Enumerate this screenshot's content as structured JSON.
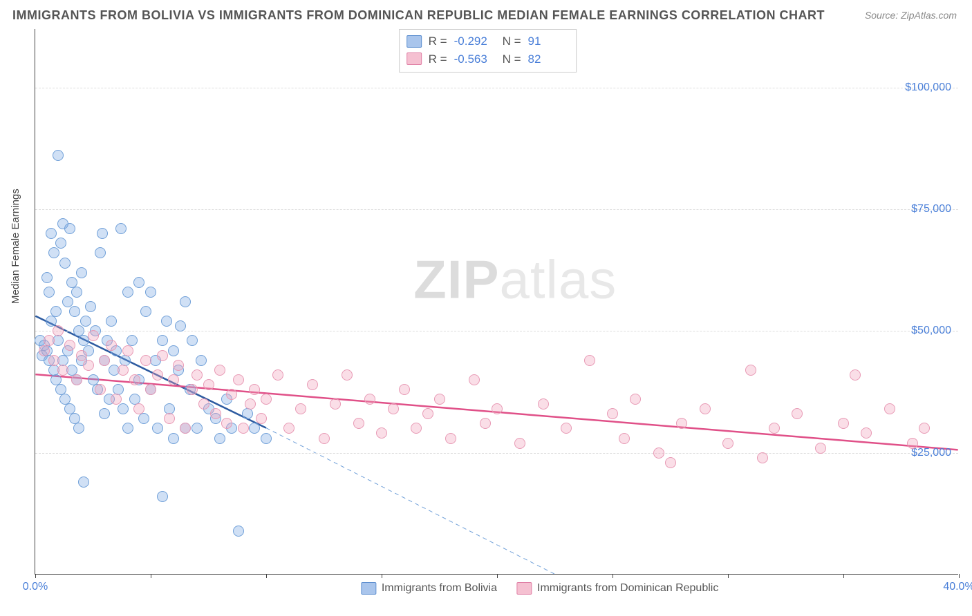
{
  "title": "IMMIGRANTS FROM BOLIVIA VS IMMIGRANTS FROM DOMINICAN REPUBLIC MEDIAN FEMALE EARNINGS CORRELATION CHART",
  "source": "Source: ZipAtlas.com",
  "ylabel": "Median Female Earnings",
  "watermark_a": "ZIP",
  "watermark_b": "atlas",
  "chart": {
    "type": "scatter",
    "xlim": [
      0,
      40
    ],
    "ylim": [
      0,
      112000
    ],
    "x_ticks": [
      0,
      5,
      10,
      15,
      20,
      25,
      30,
      35,
      40
    ],
    "x_tick_labels": {
      "0": "0.0%",
      "40": "40.0%"
    },
    "y_grid": [
      25000,
      50000,
      75000,
      100000
    ],
    "y_tick_labels": {
      "25000": "$25,000",
      "50000": "$50,000",
      "75000": "$75,000",
      "100000": "$100,000"
    },
    "background_color": "#ffffff",
    "grid_color": "#dddddd",
    "axis_color": "#444444",
    "label_color": "#4a7fd8",
    "marker_radius": 8,
    "series": [
      {
        "name": "Immigrants from Bolivia",
        "color_fill": "rgba(120,165,225,0.35)",
        "color_stroke": "#6f9fd8",
        "swatch_fill": "#a9c5ec",
        "swatch_stroke": "#5e8fd0",
        "R": "-0.292",
        "N": "91",
        "trend": {
          "x1": 0,
          "y1": 53000,
          "x2": 10,
          "y2": 30000,
          "color": "#2c5aa0",
          "width": 2.5,
          "dash": "none"
        },
        "trend_ext": {
          "x1": 10,
          "y1": 30000,
          "x2": 22.5,
          "y2": 0,
          "color": "#6f9fd8",
          "width": 1,
          "dash": "6,5"
        },
        "points": [
          [
            0.2,
            48000
          ],
          [
            0.3,
            45000
          ],
          [
            0.4,
            47000
          ],
          [
            0.5,
            61000
          ],
          [
            0.5,
            46000
          ],
          [
            0.6,
            58000
          ],
          [
            0.6,
            44000
          ],
          [
            0.7,
            70000
          ],
          [
            0.7,
            52000
          ],
          [
            0.8,
            66000
          ],
          [
            0.8,
            42000
          ],
          [
            0.9,
            54000
          ],
          [
            0.9,
            40000
          ],
          [
            1.0,
            86000
          ],
          [
            1.0,
            48000
          ],
          [
            1.1,
            68000
          ],
          [
            1.1,
            38000
          ],
          [
            1.2,
            72000
          ],
          [
            1.2,
            44000
          ],
          [
            1.3,
            64000
          ],
          [
            1.3,
            36000
          ],
          [
            1.4,
            56000
          ],
          [
            1.4,
            46000
          ],
          [
            1.5,
            71000
          ],
          [
            1.5,
            34000
          ],
          [
            1.6,
            60000
          ],
          [
            1.6,
            42000
          ],
          [
            1.7,
            54000
          ],
          [
            1.7,
            32000
          ],
          [
            1.8,
            58000
          ],
          [
            1.8,
            40000
          ],
          [
            1.9,
            50000
          ],
          [
            1.9,
            30000
          ],
          [
            2.0,
            62000
          ],
          [
            2.0,
            44000
          ],
          [
            2.1,
            48000
          ],
          [
            2.1,
            19000
          ],
          [
            2.2,
            52000
          ],
          [
            2.3,
            46000
          ],
          [
            2.4,
            55000
          ],
          [
            2.5,
            40000
          ],
          [
            2.6,
            50000
          ],
          [
            2.7,
            38000
          ],
          [
            2.8,
            66000
          ],
          [
            2.9,
            70000
          ],
          [
            3.0,
            44000
          ],
          [
            3.0,
            33000
          ],
          [
            3.1,
            48000
          ],
          [
            3.2,
            36000
          ],
          [
            3.3,
            52000
          ],
          [
            3.4,
            42000
          ],
          [
            3.5,
            46000
          ],
          [
            3.6,
            38000
          ],
          [
            3.7,
            71000
          ],
          [
            3.8,
            34000
          ],
          [
            3.9,
            44000
          ],
          [
            4.0,
            58000
          ],
          [
            4.0,
            30000
          ],
          [
            4.2,
            48000
          ],
          [
            4.3,
            36000
          ],
          [
            4.5,
            60000
          ],
          [
            4.5,
            40000
          ],
          [
            4.7,
            32000
          ],
          [
            4.8,
            54000
          ],
          [
            5.0,
            58000
          ],
          [
            5.0,
            38000
          ],
          [
            5.2,
            44000
          ],
          [
            5.3,
            30000
          ],
          [
            5.5,
            48000
          ],
          [
            5.5,
            16000
          ],
          [
            5.7,
            52000
          ],
          [
            5.8,
            34000
          ],
          [
            6.0,
            46000
          ],
          [
            6.0,
            28000
          ],
          [
            6.2,
            42000
          ],
          [
            6.3,
            51000
          ],
          [
            6.5,
            56000
          ],
          [
            6.5,
            30000
          ],
          [
            6.7,
            38000
          ],
          [
            6.8,
            48000
          ],
          [
            7.0,
            30000
          ],
          [
            7.2,
            44000
          ],
          [
            7.5,
            34000
          ],
          [
            7.8,
            32000
          ],
          [
            8.0,
            28000
          ],
          [
            8.3,
            36000
          ],
          [
            8.5,
            30000
          ],
          [
            8.8,
            9000
          ],
          [
            9.2,
            33000
          ],
          [
            9.5,
            30000
          ],
          [
            10.0,
            28000
          ]
        ]
      },
      {
        "name": "Immigrants from Dominican Republic",
        "color_fill": "rgba(240,160,185,0.35)",
        "color_stroke": "#e89ab5",
        "swatch_fill": "#f5c0d1",
        "swatch_stroke": "#e07fa5",
        "R": "-0.563",
        "N": "82",
        "trend": {
          "x1": 0,
          "y1": 41000,
          "x2": 40,
          "y2": 25500,
          "color": "#e05088",
          "width": 2.5,
          "dash": "none"
        },
        "points": [
          [
            0.4,
            46000
          ],
          [
            0.6,
            48000
          ],
          [
            0.8,
            44000
          ],
          [
            1.0,
            50000
          ],
          [
            1.2,
            42000
          ],
          [
            1.5,
            47000
          ],
          [
            1.8,
            40000
          ],
          [
            2.0,
            45000
          ],
          [
            2.3,
            43000
          ],
          [
            2.5,
            49000
          ],
          [
            2.8,
            38000
          ],
          [
            3.0,
            44000
          ],
          [
            3.3,
            47000
          ],
          [
            3.5,
            36000
          ],
          [
            3.8,
            42000
          ],
          [
            4.0,
            46000
          ],
          [
            4.3,
            40000
          ],
          [
            4.5,
            34000
          ],
          [
            4.8,
            44000
          ],
          [
            5.0,
            38000
          ],
          [
            5.3,
            41000
          ],
          [
            5.5,
            45000
          ],
          [
            5.8,
            32000
          ],
          [
            6.0,
            40000
          ],
          [
            6.2,
            43000
          ],
          [
            6.5,
            30000
          ],
          [
            6.8,
            38000
          ],
          [
            7.0,
            41000
          ],
          [
            7.3,
            35000
          ],
          [
            7.5,
            39000
          ],
          [
            7.8,
            33000
          ],
          [
            8.0,
            42000
          ],
          [
            8.3,
            31000
          ],
          [
            8.5,
            37000
          ],
          [
            8.8,
            40000
          ],
          [
            9.0,
            30000
          ],
          [
            9.3,
            35000
          ],
          [
            9.5,
            38000
          ],
          [
            9.8,
            32000
          ],
          [
            10.0,
            36000
          ],
          [
            10.5,
            41000
          ],
          [
            11.0,
            30000
          ],
          [
            11.5,
            34000
          ],
          [
            12.0,
            39000
          ],
          [
            12.5,
            28000
          ],
          [
            13.0,
            35000
          ],
          [
            13.5,
            41000
          ],
          [
            14.0,
            31000
          ],
          [
            14.5,
            36000
          ],
          [
            15.0,
            29000
          ],
          [
            15.5,
            34000
          ],
          [
            16.0,
            38000
          ],
          [
            16.5,
            30000
          ],
          [
            17.0,
            33000
          ],
          [
            17.5,
            36000
          ],
          [
            18.0,
            28000
          ],
          [
            19.0,
            40000
          ],
          [
            19.5,
            31000
          ],
          [
            20.0,
            34000
          ],
          [
            21.0,
            27000
          ],
          [
            22.0,
            35000
          ],
          [
            23.0,
            30000
          ],
          [
            24.0,
            44000
          ],
          [
            25.0,
            33000
          ],
          [
            25.5,
            28000
          ],
          [
            26.0,
            36000
          ],
          [
            27.0,
            25000
          ],
          [
            27.5,
            23000
          ],
          [
            28.0,
            31000
          ],
          [
            29.0,
            34000
          ],
          [
            30.0,
            27000
          ],
          [
            31.0,
            42000
          ],
          [
            31.5,
            24000
          ],
          [
            32.0,
            30000
          ],
          [
            33.0,
            33000
          ],
          [
            34.0,
            26000
          ],
          [
            35.0,
            31000
          ],
          [
            35.5,
            41000
          ],
          [
            36.0,
            29000
          ],
          [
            37.0,
            34000
          ],
          [
            38.0,
            27000
          ],
          [
            38.5,
            30000
          ]
        ]
      }
    ]
  },
  "legend": {
    "a": "Immigrants from Bolivia",
    "b": "Immigrants from Dominican Republic"
  }
}
